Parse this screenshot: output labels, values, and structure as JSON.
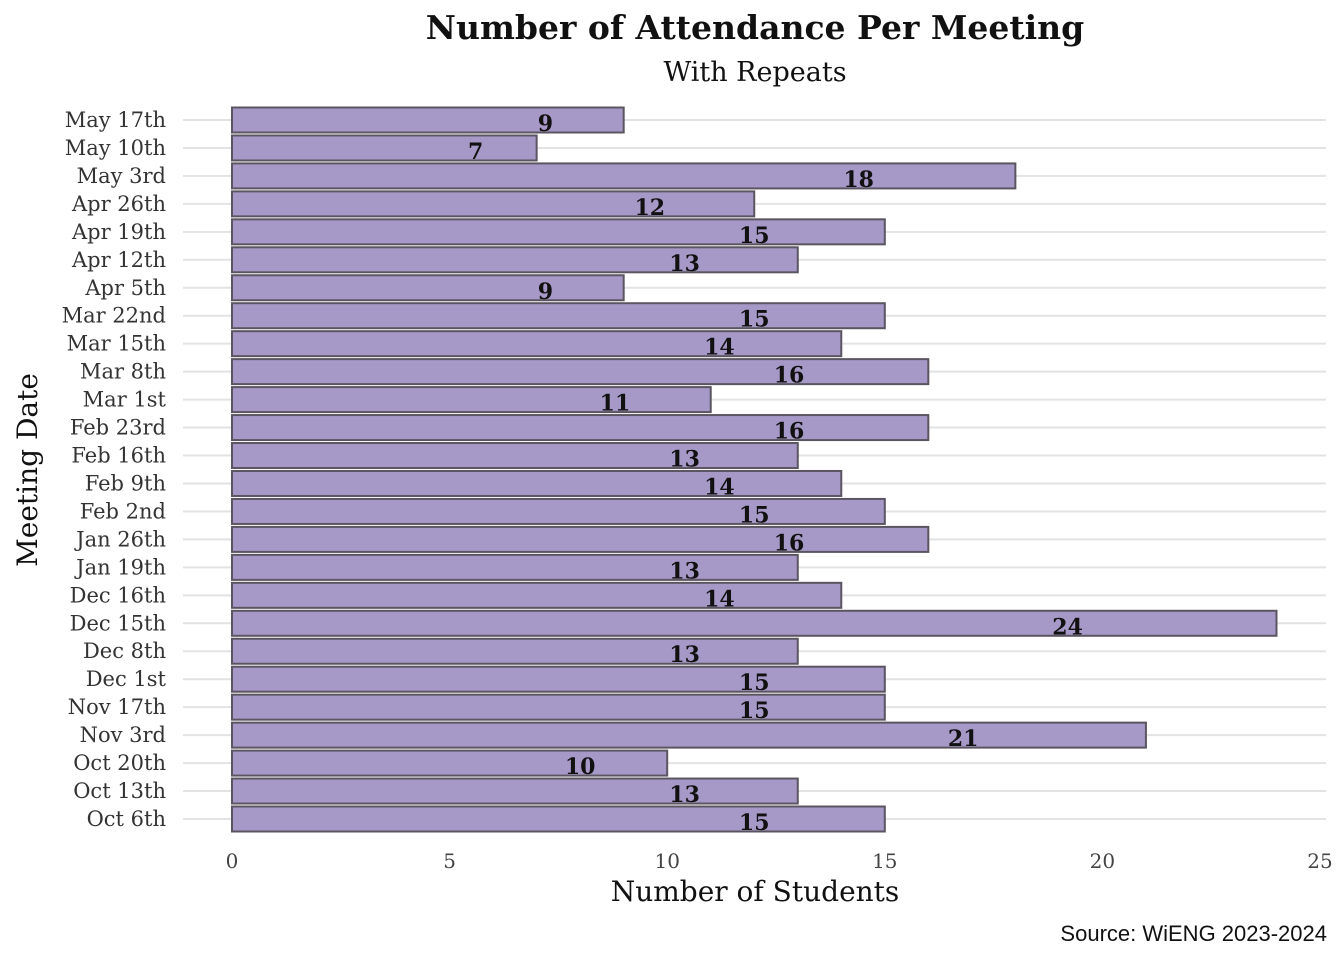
{
  "chart_data": {
    "type": "bar",
    "orientation": "horizontal",
    "title": "Number of Attendance Per Meeting",
    "subtitle": "With Repeats",
    "xlabel": "Number of Students",
    "ylabel": "Meeting Date",
    "caption": "Source: WiENG 2023-2024",
    "xlim": [
      0,
      25
    ],
    "xticks": [
      0,
      5,
      10,
      15,
      20,
      25
    ],
    "grid": "horizontal",
    "bar_color": "#a699c8",
    "bar_edge_color": "#5a5560",
    "categories": [
      "Oct 6th",
      "Oct 13th",
      "Oct 20th",
      "Nov 3rd",
      "Nov 17th",
      "Dec 1st",
      "Dec 8th",
      "Dec 15th",
      "Dec 16th",
      "Jan 19th",
      "Jan 26th",
      "Feb 2nd",
      "Feb 9th",
      "Feb 16th",
      "Feb 23rd",
      "Mar 1st",
      "Mar 8th",
      "Mar 15th",
      "Mar 22nd",
      "Apr 5th",
      "Apr 12th",
      "Apr 19th",
      "Apr 26th",
      "May 3rd",
      "May 10th",
      "May 17th"
    ],
    "values": [
      15,
      13,
      10,
      21,
      15,
      15,
      13,
      24,
      14,
      13,
      16,
      15,
      14,
      13,
      16,
      11,
      16,
      14,
      15,
      9,
      13,
      15,
      12,
      18,
      7,
      9
    ]
  }
}
